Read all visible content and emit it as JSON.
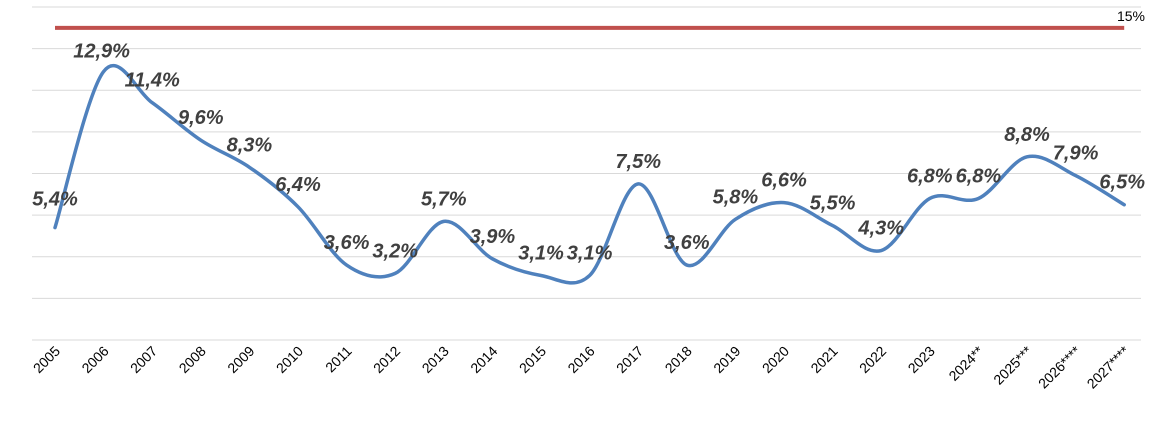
{
  "chart_data": {
    "type": "line",
    "categories": [
      "2005",
      "2006",
      "2007",
      "2008",
      "2009",
      "2010",
      "2011",
      "2012",
      "2013",
      "2014",
      "2015",
      "2016",
      "2017",
      "2018",
      "2019",
      "2020",
      "2021",
      "2022",
      "2023",
      "2024**",
      "2025***",
      "2026****",
      "2027****"
    ],
    "series": [
      {
        "values": [
          5.4,
          12.9,
          11.4,
          9.6,
          8.3,
          6.4,
          3.6,
          3.2,
          5.7,
          3.9,
          3.1,
          3.1,
          7.5,
          3.6,
          5.8,
          6.6,
          5.5,
          4.3,
          6.8,
          6.8,
          8.8,
          7.9,
          6.5
        ],
        "labels": [
          "5,4%",
          "12,9%",
          "11,4%",
          "9,6%",
          "8,3%",
          "6,4%",
          "3,6%",
          "3,2%",
          "5,7%",
          "3,9%",
          "3,1%",
          "3,1%",
          "7,5%",
          "3,6%",
          "5,8%",
          "6,6%",
          "5,5%",
          "4,3%",
          "6,8%",
          "6,8%",
          "8,8%",
          "7,9%",
          "6,5%"
        ],
        "color": "#4f81bd"
      }
    ],
    "reference_line": {
      "value": 15,
      "label": "15%",
      "color": "#c0504d"
    },
    "ylim": [
      0,
      16
    ],
    "grid": true,
    "title": "",
    "xlabel": "",
    "ylabel": ""
  }
}
